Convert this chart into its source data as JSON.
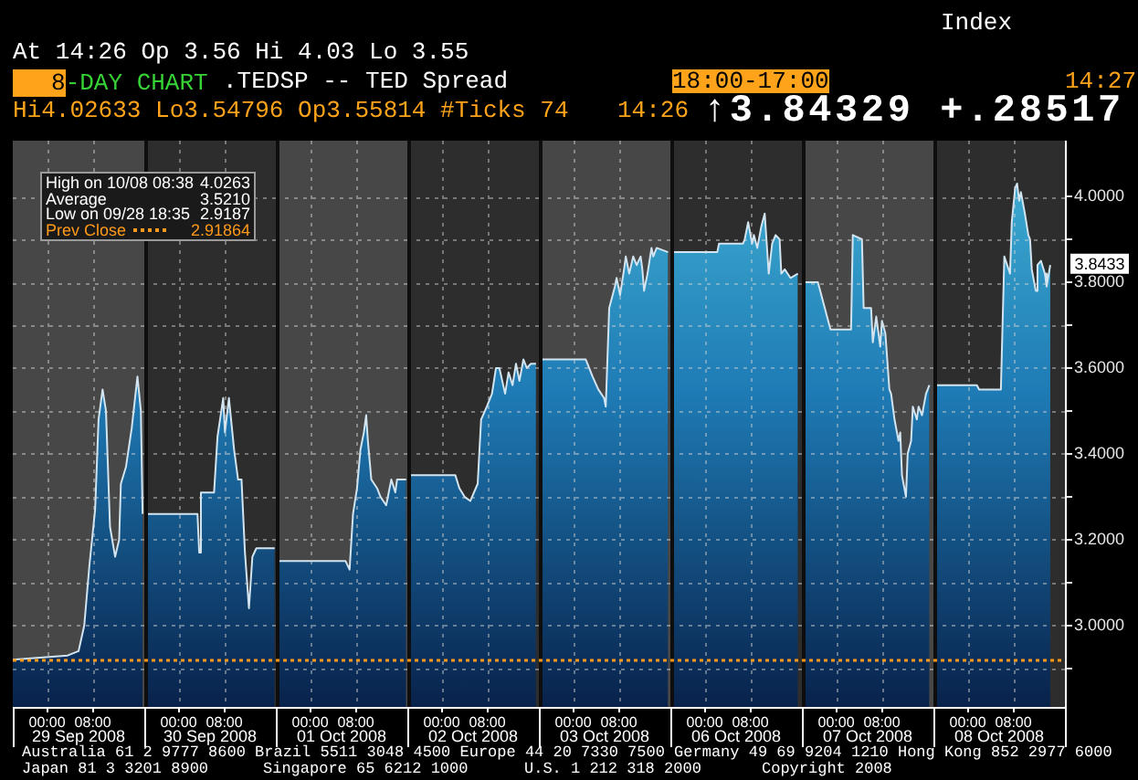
{
  "chart_data": [
    {
      "type": "area",
      "title": "8-DAY CHART",
      "xlabel": "29 Sep 2008",
      "x": [
        "2008-09-28T18:00",
        "2008-09-29T03:36",
        "2008-09-29T05:30",
        "2008-09-29T06:30",
        "2008-09-29T07:24",
        "2008-09-29T08:24",
        "2008-09-29T09:00",
        "2008-09-29T09:42",
        "2008-09-29T10:18",
        "2008-09-29T11:00",
        "2008-09-29T11:54",
        "2008-09-29T12:36",
        "2008-09-29T12:54",
        "2008-09-29T13:48",
        "2008-09-29T14:48",
        "2008-09-29T15:48",
        "2008-09-29T16:24",
        "2008-09-29T16:42"
      ],
      "values": [
        2.92,
        2.93,
        2.94,
        3.0,
        3.14,
        3.27,
        3.48,
        3.55,
        3.5,
        3.23,
        3.16,
        3.2,
        3.33,
        3.37,
        3.46,
        3.58,
        3.5,
        3.26
      ],
      "color": "#1e7ab4",
      "xlim": [
        "2008-09-28T18:00",
        "2008-09-29T17:00"
      ],
      "xticks": [
        {
          "value": "2008-09-29T00:00",
          "label": "00:00"
        },
        {
          "value": "2008-09-29T08:00",
          "label": "08:00"
        }
      ],
      "ylim": [
        2.81,
        4.13
      ],
      "yticks": [
        2.9,
        3,
        3.1,
        3.2,
        3.3,
        3.4,
        3.5,
        3.6,
        3.7,
        3.8,
        3.9,
        4
      ],
      "tick_labels": "x",
      "grid": true,
      "bands": [
        {
          "axis": "x",
          "from": "2008-09-28T18:00",
          "to": "2008-09-29T17:00",
          "color": "#474747"
        }
      ],
      "ref_lines": [
        {
          "axis": "y",
          "value": 2.91864,
          "label": "Prev Close",
          "color": "#ff9a1a",
          "line_style": "dotted"
        }
      ],
      "annotations": [
        "Index",
        "At 14:26 Op 3.56 Hi 4.03 Lo 3.55",
        "18:00-17:00",
        "14:27",
        "Hi4.02633 Lo3.54796 Op3.55814 #Ticks 74",
        "14:26",
        "↑3.84329 +.28517",
        "High on 10/08 08:38",
        "4.0263",
        "Average",
        "3.5210",
        "Low on 09/28 18:35",
        "2.9187",
        "2.91864",
        "Australia 61 2 9777 8600 Brazil 5511 3048 4500 Europe 44 20 7330 7500 Germany 49 69 9204 1210 Hong Kong 852 2977 6000",
        "Japan 81 3 3201 8900",
        "Singapore 65 6212 1000",
        "U.S. 1 212 318 2000",
        "Copyright 2008",
        ".TEDSP -- TED Spread"
      ]
    },
    {
      "type": "area",
      "xlabel": "30 Sep 2008",
      "x": [
        "2008-09-29T18:24",
        "2008-09-30T03:18",
        "2008-09-30T03:36",
        "2008-09-30T03:54",
        "2008-09-30T06:12",
        "2008-09-30T06:48",
        "2008-09-30T07:48",
        "2008-09-30T08:06",
        "2008-09-30T08:48",
        "2008-09-30T09:24",
        "2008-09-30T09:42",
        "2008-09-30T10:24",
        "2008-09-30T11:00",
        "2008-09-30T11:36",
        "2008-09-30T12:18",
        "2008-09-30T12:54",
        "2008-09-30T13:36",
        "2008-09-30T16:48"
      ],
      "values": [
        3.26,
        3.26,
        3.17,
        3.31,
        3.31,
        3.44,
        3.53,
        3.45,
        3.53,
        3.45,
        3.41,
        3.34,
        3.34,
        3.17,
        3.04,
        3.16,
        3.18,
        3.18
      ],
      "color": "#1e7ab4",
      "xlim": [
        "2008-09-29T18:00",
        "2008-09-30T17:00"
      ],
      "xticks": [
        {
          "value": "2008-09-30T00:00",
          "label": "00:00"
        },
        {
          "value": "2008-09-30T08:00",
          "label": "08:00"
        }
      ],
      "ylim": [
        2.81,
        4.13
      ],
      "yticks": [
        2.9,
        3,
        3.1,
        3.2,
        3.3,
        3.4,
        3.5,
        3.6,
        3.7,
        3.8,
        3.9,
        4
      ],
      "tick_labels": "x",
      "grid": true,
      "bands": [
        {
          "axis": "x",
          "from": "2008-09-29T18:00",
          "to": "2008-09-30T17:00",
          "color": "#2d2d2d"
        }
      ],
      "ref_lines": [
        {
          "axis": "y",
          "value": 2.91864,
          "color": "#ff9a1a",
          "line_style": "dotted"
        }
      ]
    },
    {
      "type": "area",
      "xlabel": "01 Oct 2008",
      "x": [
        "2008-09-30T18:24",
        "2008-10-01T06:12",
        "2008-10-01T06:54",
        "2008-10-01T07:30",
        "2008-10-01T08:12",
        "2008-10-01T08:48",
        "2008-10-01T09:24",
        "2008-10-01T09:48",
        "2008-10-01T10:06",
        "2008-10-01T10:42",
        "2008-10-01T11:42",
        "2008-10-01T12:18",
        "2008-10-01T13:18",
        "2008-10-01T14:12",
        "2008-10-01T14:54",
        "2008-10-01T15:12",
        "2008-10-01T16:48"
      ],
      "values": [
        3.15,
        3.15,
        3.13,
        3.26,
        3.32,
        3.41,
        3.45,
        3.49,
        3.43,
        3.34,
        3.32,
        3.3,
        3.28,
        3.34,
        3.31,
        3.34,
        3.34
      ],
      "color": "#1e7ab4",
      "xlim": [
        "2008-09-30T18:00",
        "2008-10-01T17:00"
      ],
      "xticks": [
        {
          "value": "2008-10-01T00:00",
          "label": "00:00"
        },
        {
          "value": "2008-10-01T08:00",
          "label": "08:00"
        }
      ],
      "ylim": [
        2.81,
        4.13
      ],
      "yticks": [
        2.9,
        3,
        3.1,
        3.2,
        3.3,
        3.4,
        3.5,
        3.6,
        3.7,
        3.8,
        3.9,
        4
      ],
      "tick_labels": "x",
      "grid": true,
      "bands": [
        {
          "axis": "x",
          "from": "2008-09-30T18:00",
          "to": "2008-10-01T17:00",
          "color": "#474747"
        }
      ],
      "ref_lines": [
        {
          "axis": "y",
          "value": 2.91864,
          "color": "#ff9a1a",
          "line_style": "dotted"
        }
      ]
    },
    {
      "type": "area",
      "xlabel": "02 Oct 2008",
      "x": [
        "2008-10-01T18:24",
        "2008-10-02T02:24",
        "2008-10-02T03:06",
        "2008-10-02T04:00",
        "2008-10-02T05:00",
        "2008-10-02T06:18",
        "2008-10-02T06:54",
        "2008-10-02T07:54",
        "2008-10-02T08:48",
        "2008-10-02T09:30",
        "2008-10-02T10:06",
        "2008-10-02T11:06",
        "2008-10-02T11:42",
        "2008-10-02T12:24",
        "2008-10-02T13:00",
        "2008-10-02T13:36",
        "2008-10-02T14:18",
        "2008-10-02T14:54",
        "2008-10-02T15:36",
        "2008-10-02T16:30"
      ],
      "values": [
        3.35,
        3.35,
        3.32,
        3.3,
        3.29,
        3.33,
        3.48,
        3.51,
        3.54,
        3.6,
        3.6,
        3.54,
        3.59,
        3.56,
        3.61,
        3.57,
        3.62,
        3.6,
        3.61,
        3.61
      ],
      "color": "#1e7ab4",
      "xlim": [
        "2008-10-01T18:00",
        "2008-10-02T17:00"
      ],
      "xticks": [
        {
          "value": "2008-10-02T00:00",
          "label": "00:00"
        },
        {
          "value": "2008-10-02T08:00",
          "label": "08:00"
        }
      ],
      "ylim": [
        2.81,
        4.13
      ],
      "yticks": [
        2.9,
        3,
        3.1,
        3.2,
        3.3,
        3.4,
        3.5,
        3.6,
        3.7,
        3.8,
        3.9,
        4
      ],
      "tick_labels": "x",
      "grid": true,
      "bands": [
        {
          "axis": "x",
          "from": "2008-10-01T18:00",
          "to": "2008-10-02T17:00",
          "color": "#2d2d2d"
        }
      ],
      "ref_lines": [
        {
          "axis": "y",
          "value": 2.91864,
          "color": "#ff9a1a",
          "line_style": "dotted"
        }
      ]
    },
    {
      "type": "area",
      "xlabel": "03 Oct 2008",
      "x": [
        "2008-10-02T18:12",
        "2008-10-03T02:12",
        "2008-10-03T02:48",
        "2008-10-03T03:24",
        "2008-10-03T04:24",
        "2008-10-03T05:24",
        "2008-10-03T05:42",
        "2008-10-03T06:18",
        "2008-10-03T07:18",
        "2008-10-03T07:36",
        "2008-10-03T08:12",
        "2008-10-03T08:54",
        "2008-10-03T09:12",
        "2008-10-03T09:48",
        "2008-10-03T10:30",
        "2008-10-03T11:06",
        "2008-10-03T11:48",
        "2008-10-03T12:06",
        "2008-10-03T12:24",
        "2008-10-03T13:00",
        "2008-10-03T13:42",
        "2008-10-03T14:00",
        "2008-10-03T14:36",
        "2008-10-03T16:36"
      ],
      "values": [
        3.62,
        3.62,
        3.6,
        3.58,
        3.55,
        3.53,
        3.51,
        3.74,
        3.79,
        3.81,
        3.77,
        3.83,
        3.86,
        3.82,
        3.86,
        3.84,
        3.86,
        3.83,
        3.78,
        3.82,
        3.88,
        3.86,
        3.88,
        3.87
      ],
      "color": "#1e7ab4",
      "xlim": [
        "2008-10-02T18:00",
        "2008-10-03T17:00"
      ],
      "xticks": [
        {
          "value": "2008-10-03T00:00",
          "label": "00:00"
        },
        {
          "value": "2008-10-03T08:00",
          "label": "08:00"
        }
      ],
      "ylim": [
        2.81,
        4.13
      ],
      "yticks": [
        2.9,
        3,
        3.1,
        3.2,
        3.3,
        3.4,
        3.5,
        3.6,
        3.7,
        3.8,
        3.9,
        4
      ],
      "tick_labels": "x",
      "grid": true,
      "bands": [
        {
          "axis": "x",
          "from": "2008-10-02T18:00",
          "to": "2008-10-03T17:00",
          "color": "#474747"
        }
      ],
      "ref_lines": [
        {
          "axis": "y",
          "value": 2.91864,
          "color": "#ff9a1a",
          "line_style": "dotted"
        }
      ]
    },
    {
      "type": "area",
      "xlabel": "06 Oct 2008",
      "x": [
        "2008-10-05T18:30",
        "2008-10-06T02:12",
        "2008-10-06T02:30",
        "2008-10-06T06:42",
        "2008-10-06T07:00",
        "2008-10-06T07:36",
        "2008-10-06T08:18",
        "2008-10-06T08:36",
        "2008-10-06T09:12",
        "2008-10-06T09:54",
        "2008-10-06T10:30",
        "2008-10-06T11:12",
        "2008-10-06T11:48",
        "2008-10-06T12:24",
        "2008-10-06T13:06",
        "2008-10-06T13:24",
        "2008-10-06T14:00",
        "2008-10-06T15:00",
        "2008-10-06T16:18"
      ],
      "values": [
        3.87,
        3.87,
        3.89,
        3.89,
        3.9,
        3.94,
        3.89,
        3.91,
        3.88,
        3.93,
        3.96,
        3.82,
        3.89,
        3.91,
        3.9,
        3.82,
        3.83,
        3.81,
        3.82
      ],
      "color": "#1e7ab4",
      "xlim": [
        "2008-10-05T18:00",
        "2008-10-06T17:00"
      ],
      "xticks": [
        {
          "value": "2008-10-06T00:00",
          "label": "00:00"
        },
        {
          "value": "2008-10-06T08:00",
          "label": "08:00"
        }
      ],
      "ylim": [
        2.81,
        4.13
      ],
      "yticks": [
        2.9,
        3,
        3.1,
        3.2,
        3.3,
        3.4,
        3.5,
        3.6,
        3.7,
        3.8,
        3.9,
        4
      ],
      "tick_labels": "x",
      "grid": true,
      "bands": [
        {
          "axis": "x",
          "from": "2008-10-05T18:00",
          "to": "2008-10-06T17:00",
          "color": "#2d2d2d"
        }
      ],
      "ref_lines": [
        {
          "axis": "y",
          "value": 2.91864,
          "color": "#ff9a1a",
          "line_style": "dotted"
        }
      ]
    },
    {
      "type": "area",
      "xlabel": "07 Oct 2008",
      "x": [
        "2008-10-06T18:12",
        "2008-10-06T20:48",
        "2008-10-06T23:00",
        "2008-10-07T02:36",
        "2008-10-07T02:54",
        "2008-10-07T04:30",
        "2008-10-07T04:48",
        "2008-10-07T06:06",
        "2008-10-07T06:24",
        "2008-10-07T07:00",
        "2008-10-07T07:42",
        "2008-10-07T08:00",
        "2008-10-07T08:36",
        "2008-10-07T09:18",
        "2008-10-07T09:36",
        "2008-10-07T10:12",
        "2008-10-07T10:54",
        "2008-10-07T11:12",
        "2008-10-07T11:30",
        "2008-10-07T12:12",
        "2008-10-07T12:30",
        "2008-10-07T13:06",
        "2008-10-07T13:24",
        "2008-10-07T14:06",
        "2008-10-07T14:24",
        "2008-10-07T15:00",
        "2008-10-07T15:42",
        "2008-10-07T16:18"
      ],
      "values": [
        3.8,
        3.8,
        3.69,
        3.69,
        3.91,
        3.9,
        3.74,
        3.74,
        3.66,
        3.72,
        3.65,
        3.71,
        3.68,
        3.55,
        3.54,
        3.48,
        3.43,
        3.45,
        3.35,
        3.3,
        3.4,
        3.43,
        3.51,
        3.48,
        3.51,
        3.49,
        3.54,
        3.56
      ],
      "color": "#1e7ab4",
      "xlim": [
        "2008-10-06T18:00",
        "2008-10-07T17:00"
      ],
      "xticks": [
        {
          "value": "2008-10-07T00:00",
          "label": "00:00"
        },
        {
          "value": "2008-10-07T08:00",
          "label": "08:00"
        }
      ],
      "ylim": [
        2.81,
        4.13
      ],
      "yticks": [
        2.9,
        3,
        3.1,
        3.2,
        3.3,
        3.4,
        3.5,
        3.6,
        3.7,
        3.8,
        3.9,
        4
      ],
      "tick_labels": "x",
      "grid": true,
      "bands": [
        {
          "axis": "x",
          "from": "2008-10-06T18:00",
          "to": "2008-10-07T17:00",
          "color": "#474747"
        }
      ],
      "ref_lines": [
        {
          "axis": "y",
          "value": 2.91864,
          "color": "#ff9a1a",
          "line_style": "dotted"
        }
      ]
    },
    {
      "type": "area",
      "xlabel": "08 Oct 2008",
      "x": [
        "2008-10-07T18:18",
        "2008-10-08T01:36",
        "2008-10-08T02:00",
        "2008-10-08T05:48",
        "2008-10-08T06:24",
        "2008-10-08T07:24",
        "2008-10-08T07:42",
        "2008-10-08T08:18",
        "2008-10-08T08:38",
        "2008-10-08T09:00",
        "2008-10-08T09:18",
        "2008-10-08T10:00",
        "2008-10-08T10:36",
        "2008-10-08T10:54",
        "2008-10-08T11:12",
        "2008-10-08T11:54",
        "2008-10-08T12:12",
        "2008-10-08T12:48",
        "2008-10-08T13:30",
        "2008-10-08T13:48",
        "2008-10-08T14:26"
      ],
      "values": [
        3.56,
        3.56,
        3.55,
        3.55,
        3.86,
        3.82,
        3.94,
        4.02,
        4.03,
        3.99,
        4.01,
        3.96,
        3.91,
        3.9,
        3.83,
        3.78,
        3.84,
        3.85,
        3.82,
        3.79,
        3.84
      ],
      "color": "#1e7ab4",
      "xlim": [
        "2008-10-07T18:00",
        "2008-10-08T17:00"
      ],
      "xticks": [
        {
          "value": "2008-10-08T00:00",
          "label": "00:00"
        },
        {
          "value": "2008-10-08T08:00",
          "label": "08:00"
        }
      ],
      "ylim": [
        2.81,
        4.13
      ],
      "yticks": [
        {
          "value": 2.9,
          "label": null
        },
        {
          "value": 3,
          "label": "3.0000"
        },
        {
          "value": 3.1,
          "label": null
        },
        {
          "value": 3.2,
          "label": "3.2000"
        },
        {
          "value": 3.3,
          "label": null
        },
        {
          "value": 3.4,
          "label": "3.4000"
        },
        {
          "value": 3.5,
          "label": null
        },
        {
          "value": 3.6,
          "label": "3.6000"
        },
        {
          "value": 3.7,
          "label": null
        },
        {
          "value": 3.8,
          "label": "3.8000"
        },
        {
          "value": 3.9,
          "label": null
        },
        {
          "value": 4,
          "label": "4.0000"
        }
      ],
      "grid": true,
      "bands": [
        {
          "axis": "x",
          "from": "2008-10-07T18:00",
          "to": "2008-10-08T17:00",
          "color": "#2d2d2d"
        }
      ],
      "ref_lines": [
        {
          "axis": "y",
          "value": 2.91864,
          "color": "#ff9a1a",
          "line_style": "dotted"
        }
      ],
      "annotations": [
        {
          "text": "3.8433",
          "y": 3.8433
        }
      ]
    }
  ]
}
